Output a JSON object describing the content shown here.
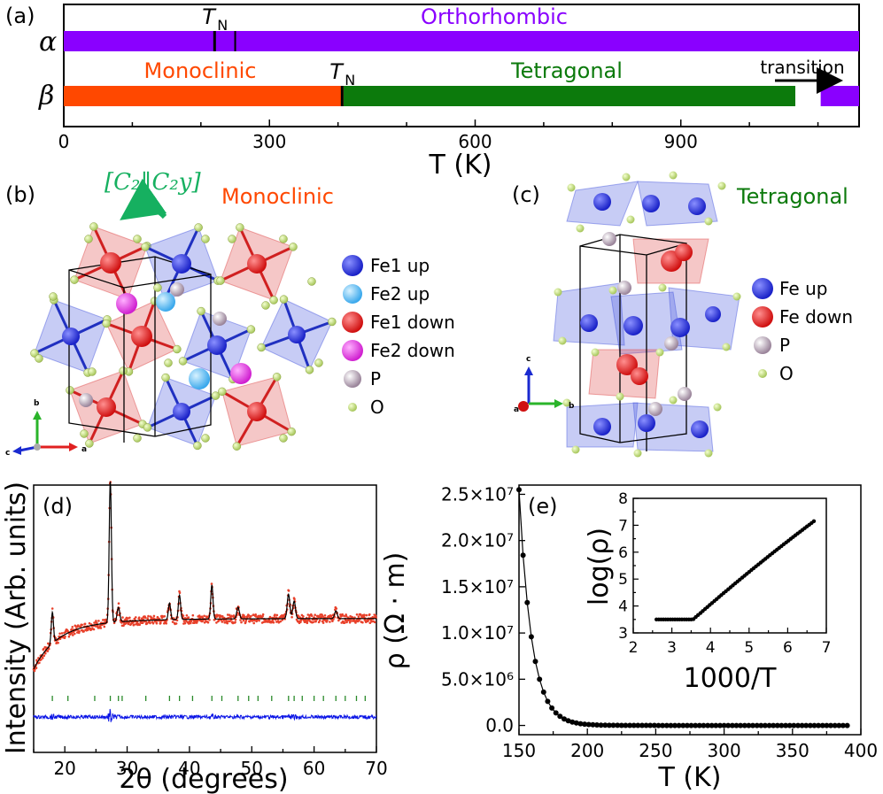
{
  "colors": {
    "ortho": "#8a00ff",
    "mono": "#ff4800",
    "tetra": "#0c7a0c",
    "fe1up": "#1a22c8",
    "fe2up": "#4ab4f0",
    "fe1down": "#e01818",
    "fe2down": "#e030e0",
    "p": "#b8a0b8",
    "o": "#c8e080",
    "xrd_obs": "#e8402a",
    "xrd_fit": "#000000",
    "xrd_diff": "#0a14e6",
    "xrd_ticks": "#2a8a2a",
    "curve": "#000000"
  },
  "panels": {
    "a": "(a)",
    "b": "(b)",
    "c": "(c)",
    "d": "(d)",
    "e": "(e)"
  },
  "chart_data": [
    {
      "id": "a",
      "type": "bar",
      "title": "",
      "xlabel": "T (K)",
      "xlim": [
        0,
        1160
      ],
      "xticks": [
        0,
        300,
        600,
        900
      ],
      "rows": [
        {
          "name": "α",
          "segments": [
            {
              "label": "Orthorhombic",
              "from": 0,
              "to": 1160,
              "color": "#8a00ff"
            }
          ],
          "markers": [
            {
              "label": "T",
              "sub": "N",
              "values": [
                220,
                250
              ]
            }
          ]
        },
        {
          "name": "β",
          "segments": [
            {
              "label": "Monoclinic",
              "from": 0,
              "to": 408,
              "color": "#ff4800"
            },
            {
              "label": "Tetragonal",
              "from": 408,
              "to": 1067,
              "color": "#0c7a0c"
            },
            {
              "label": "",
              "from": 1104,
              "to": 1160,
              "color": "#8a00ff"
            }
          ],
          "markers": [
            {
              "label": "T",
              "sub": "N",
              "values": [
                406
              ]
            }
          ],
          "annotation": "transition"
        }
      ]
    },
    {
      "id": "d",
      "type": "line",
      "xlabel": "2θ (degrees)",
      "ylabel": "Intensity (Arb. units)",
      "xlim": [
        15,
        70
      ],
      "xticks": [
        20,
        30,
        40,
        50,
        60,
        70
      ],
      "peaks": [
        {
          "x": 18.0,
          "h": 0.32,
          "w": 0.25
        },
        {
          "x": 27.3,
          "h": 1.45,
          "w": 0.25
        },
        {
          "x": 28.6,
          "h": 0.15,
          "w": 0.3
        },
        {
          "x": 36.8,
          "h": 0.17,
          "w": 0.25
        },
        {
          "x": 38.4,
          "h": 0.25,
          "w": 0.25
        },
        {
          "x": 43.6,
          "h": 0.35,
          "w": 0.25
        },
        {
          "x": 47.8,
          "h": 0.12,
          "w": 0.3
        },
        {
          "x": 55.9,
          "h": 0.25,
          "w": 0.3
        },
        {
          "x": 56.8,
          "h": 0.18,
          "w": 0.3
        },
        {
          "x": 63.5,
          "h": 0.08,
          "w": 0.3
        }
      ],
      "bragg_positions": [
        18.0,
        20.5,
        24.8,
        27.3,
        28.6,
        29.2,
        33.0,
        36.8,
        38.4,
        40.5,
        43.6,
        45.2,
        47.8,
        49.5,
        51.0,
        53.2,
        55.9,
        56.8,
        58.1,
        60.0,
        61.5,
        63.5,
        65.0,
        66.8,
        68.2
      ]
    },
    {
      "id": "e",
      "type": "scatter",
      "xlabel": "T (K)",
      "ylabel": "ρ (Ω · m)",
      "xlim": [
        150,
        400
      ],
      "ylim": [
        -1000000,
        26000000
      ],
      "xticks": [
        150,
        200,
        250,
        300,
        350,
        400
      ],
      "yticks": [
        0,
        5000000,
        10000000,
        15000000,
        20000000,
        25000000
      ],
      "ytick_labels": [
        "0.0",
        "5.0×10⁶",
        "1.0×10⁷",
        "1.5×10⁷",
        "2.0×10⁷",
        "2.5×10⁷"
      ],
      "T_start": 150,
      "T_end": 390,
      "T_step": 3,
      "rho_fit": {
        "A": 25500000,
        "decay": 9.2
      },
      "inset": {
        "type": "scatter",
        "xlabel": "1000/T",
        "ylabel": "log(ρ)",
        "xlim": [
          2,
          7
        ],
        "ylim": [
          3,
          8
        ],
        "xticks": [
          2,
          3,
          4,
          5,
          6,
          7
        ],
        "yticks": [
          3,
          4,
          5,
          6,
          7,
          8
        ],
        "x_range": [
          2.6,
          6.7
        ],
        "plateau": 3.5,
        "knee": 3.55,
        "slope": 1.26
      }
    }
  ],
  "struct_b": {
    "title": "Monoclinic",
    "rotation": "[C₂‖C₂y]",
    "axes": {
      "a": "a",
      "b": "b",
      "c": "c"
    },
    "legend": [
      "Fe1 up",
      "Fe2 up",
      "Fe1 down",
      "Fe2 down",
      "P",
      "O"
    ]
  },
  "struct_c": {
    "title": "Tetragonal",
    "axes": {
      "a": "a",
      "b": "b",
      "c": "c"
    },
    "legend": [
      "Fe up",
      "Fe down",
      "P",
      "O"
    ]
  }
}
